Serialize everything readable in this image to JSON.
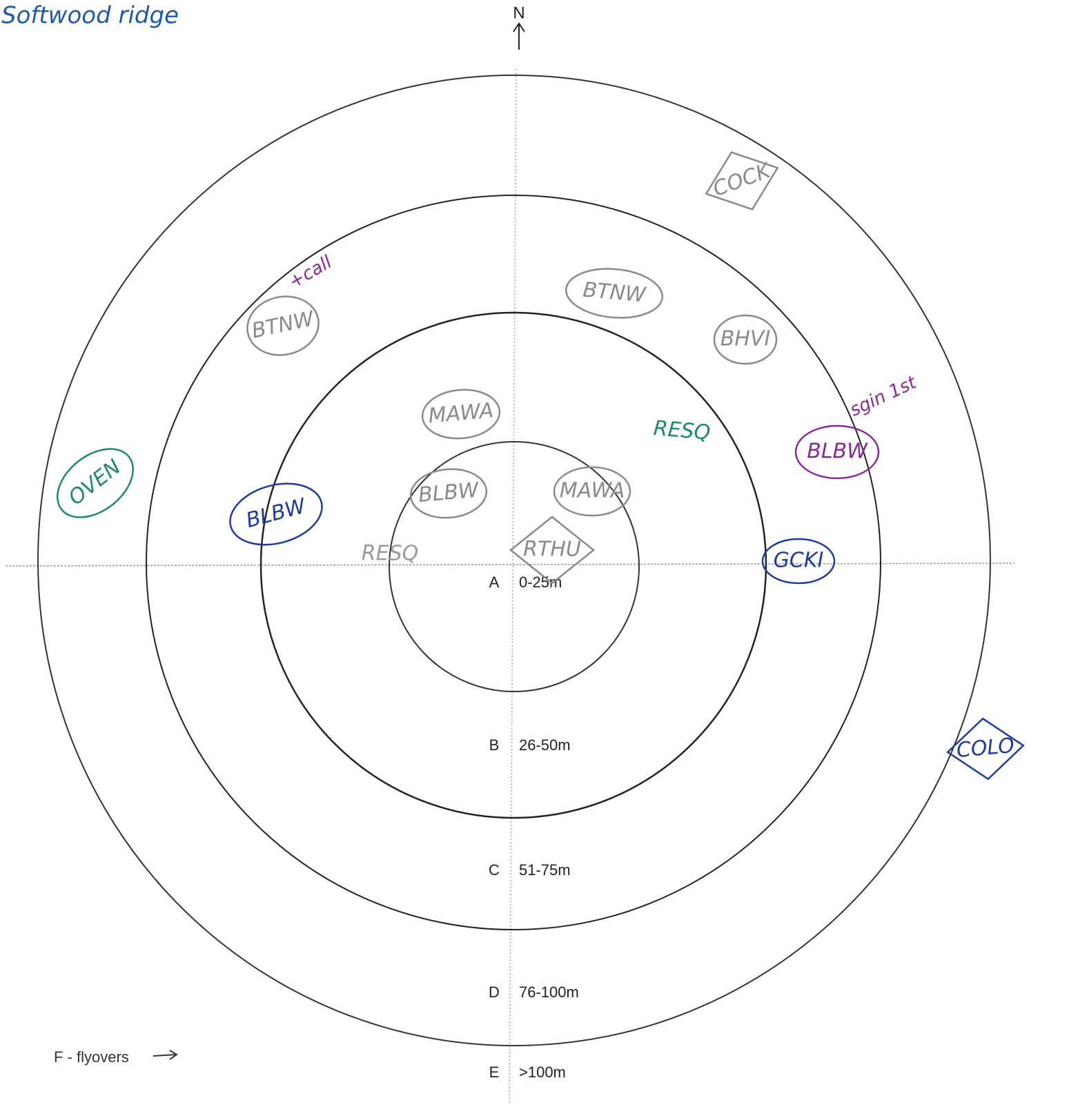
{
  "header": {
    "title": "Softwood ridge"
  },
  "compass": {
    "label": "N"
  },
  "rings": [
    {
      "letter": "A",
      "range": "0-25m"
    },
    {
      "letter": "B",
      "range": "26-50m"
    },
    {
      "letter": "C",
      "range": "51-75m"
    },
    {
      "letter": "D",
      "range": "76-100m"
    },
    {
      "letter": "E",
      "range": ">100m"
    }
  ],
  "flyovers": {
    "label": "F - flyovers"
  },
  "birds": [
    {
      "label": "COCK",
      "color": "#8a8a8a"
    },
    {
      "label": "BTNW",
      "color": "#8a8a8a"
    },
    {
      "label": "BTNW",
      "color": "#8a8a8a"
    },
    {
      "label": "BHVI",
      "color": "#8a8a8a"
    },
    {
      "label": "MAWA",
      "color": "#8a8a8a"
    },
    {
      "label": "MAWA",
      "color": "#8a8a8a"
    },
    {
      "label": "RESQ",
      "color": "#1f8a66"
    },
    {
      "label": "RESQ",
      "color": "#9a9a9a"
    },
    {
      "label": "BLBW",
      "color": "#8a2a9a"
    },
    {
      "label": "BLBW",
      "color": "#1f3c9a"
    },
    {
      "label": "BLBW",
      "color": "#8a8a8a"
    },
    {
      "label": "OVEN",
      "color": "#1f8a66"
    },
    {
      "label": "GCKI",
      "color": "#1f3c9a"
    },
    {
      "label": "RTHU",
      "color": "#8a8a8a"
    },
    {
      "label": "COLO",
      "color": "#1f3c9a"
    }
  ],
  "annotations": [
    {
      "text": "+call",
      "color": "#8a2a9a"
    },
    {
      "text": "sgin 1st",
      "color": "#8a2a9a"
    }
  ]
}
